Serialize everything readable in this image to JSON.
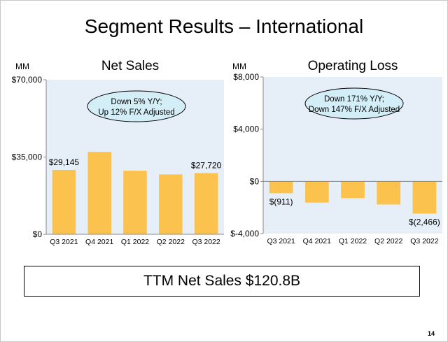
{
  "slide": {
    "title": "Segment Results – International",
    "page_number": "14",
    "ttm": "TTM Net Sales $120.8B"
  },
  "colors": {
    "bar": "#FBC34E",
    "plot_bg": "#E6EEF8",
    "bubble_bg": "#D4EEF8",
    "axis": "#888888"
  },
  "chart_data": [
    {
      "type": "bar",
      "title": "Net Sales",
      "unit": "MM",
      "categories": [
        "Q3 2021",
        "Q4 2021",
        "Q1 2022",
        "Q2 2022",
        "Q3 2022"
      ],
      "values": [
        29145,
        37300,
        28800,
        27100,
        27720
      ],
      "ylim": [
        0,
        70000
      ],
      "ticks": [
        {
          "v": 0,
          "label": "$0"
        },
        {
          "v": 35000,
          "label": "$35,000"
        },
        {
          "v": 70000,
          "label": "$70,000"
        }
      ],
      "data_labels": [
        {
          "index": 0,
          "text": "$29,145"
        },
        {
          "index": 4,
          "text": "$27,720"
        }
      ],
      "callout": [
        "Down 5% Y/Y;",
        "Up 12% F/X Adjusted"
      ]
    },
    {
      "type": "bar",
      "title": "Operating Loss",
      "unit": "MM",
      "categories": [
        "Q3 2021",
        "Q4 2021",
        "Q1 2022",
        "Q2 2022",
        "Q3 2022"
      ],
      "values": [
        -911,
        -1627,
        -1281,
        -1771,
        -2466
      ],
      "ylim": [
        -4000,
        8000
      ],
      "ticks": [
        {
          "v": -4000,
          "label": "$-4,000"
        },
        {
          "v": 0,
          "label": "$0"
        },
        {
          "v": 4000,
          "label": "$4,000"
        },
        {
          "v": 8000,
          "label": "$8,000"
        }
      ],
      "data_labels": [
        {
          "index": 0,
          "text": "$(911)"
        },
        {
          "index": 4,
          "text": "$(2,466)"
        }
      ],
      "callout": [
        "Down 171% Y/Y;",
        "Down 147% F/X Adjusted"
      ]
    }
  ]
}
